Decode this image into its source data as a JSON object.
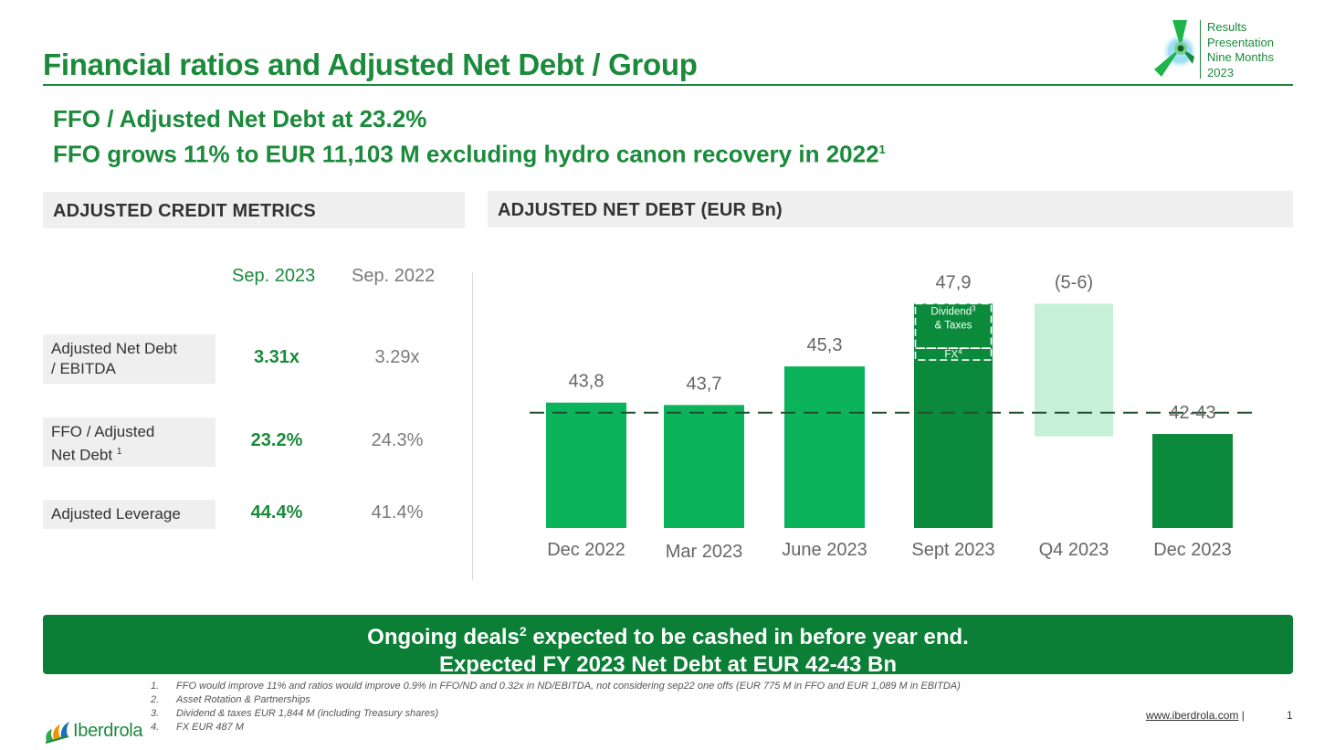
{
  "header": {
    "title": "Financial ratios and Adjusted Net Debt / Group",
    "brand_lines": [
      "Results",
      "Presentation",
      "Nine Months",
      "2023"
    ]
  },
  "subheading": {
    "line1": "FFO / Adjusted Net Debt at 23.2%",
    "line2": "FFO grows 11% to EUR 11,103 M excluding hydro canon recovery in 2022",
    "line2_sup": "1"
  },
  "credit_metrics": {
    "header": "ADJUSTED CREDIT METRICS",
    "col_current": "Sep. 2023",
    "col_previous": "Sep. 2022",
    "rows": [
      {
        "label_line1": "Adjusted Net Debt",
        "label_line2": "/ EBITDA",
        "sup": "",
        "current": "3.31x",
        "previous": "3.29x"
      },
      {
        "label_line1": "FFO / Adjusted",
        "label_line2": "Net Debt ",
        "sup": "1",
        "current": "23.2%",
        "previous": "24.3%"
      },
      {
        "label_line1": "Adjusted Leverage",
        "label_line2": "",
        "sup": "",
        "current": "44.4%",
        "previous": "41.4%"
      }
    ]
  },
  "net_debt": {
    "header": "ADJUSTED NET DEBT (EUR Bn)"
  },
  "chart_data": {
    "type": "bar",
    "title": "ADJUSTED NET DEBT (EUR Bn)",
    "categories": [
      "Dec 2022",
      "Mar 2023",
      "June 2023",
      "Sept 2023",
      "Q4 2023",
      "Dec 2023"
    ],
    "values": [
      43.8,
      43.7,
      45.3,
      47.9,
      -5.5,
      42.5
    ],
    "value_labels": [
      "43,8",
      "43,7",
      "45,3",
      "47,9",
      "(5-6)",
      "42-43"
    ],
    "bar_kind": [
      "total",
      "total",
      "total",
      "total",
      "delta",
      "total"
    ],
    "colors": {
      "bright": "#0bb35a",
      "dark": "#0a8a3a",
      "pale": "#c6f1d6"
    },
    "bar_colors": [
      "bright",
      "bright",
      "bright",
      "dark",
      "pale",
      "dark"
    ],
    "baseline_dashed": 43.8,
    "sept_segments": [
      {
        "label": "Dividend",
        "sup": "3",
        "label2": "& Taxes",
        "value": 1.844
      },
      {
        "label": "FX",
        "sup": "4",
        "label2": "",
        "value": 0.487
      }
    ],
    "grid": false,
    "legend": "none"
  },
  "banner": {
    "line1_pre": "Ongoing deals",
    "line1_sup": "2",
    "line1_post": " expected  to be cashed in before year end.",
    "line2": "Expected FY 2023 Net Debt at EUR 42-43 Bn"
  },
  "footnotes": [
    {
      "num": "1.",
      "text": "FFO would improve 11% and ratios would improve 0.9% in FFO/ND and 0.32x in ND/EBITDA, not considering sep22 one offs (EUR 775 M in FFO and EUR 1,089 M in EBITDA)"
    },
    {
      "num": "2.",
      "text": "Asset Rotation & Partnerships"
    },
    {
      "num": "3.",
      "text": "Dividend & taxes EUR 1,844 M (including Treasury shares)"
    },
    {
      "num": "4.",
      "text": "FX EUR 487 M"
    }
  ],
  "footer": {
    "company": "Iberdrola",
    "url": "www.iberdrola.com",
    "separator": "|",
    "page": "1"
  },
  "icons": [
    "results-emblem-icon",
    "iberdrola-flame-icon"
  ]
}
